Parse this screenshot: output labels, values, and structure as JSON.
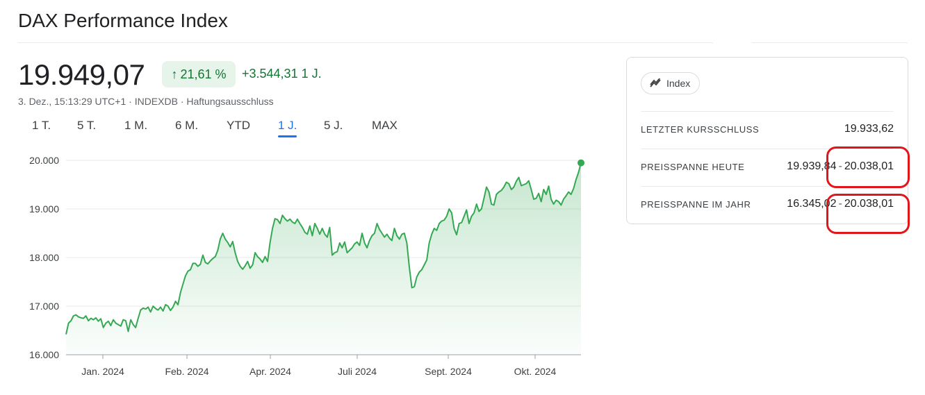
{
  "title": "DAX Performance Index",
  "quote": {
    "price": "19.949,07",
    "change_pct": "21,61 %",
    "change_abs": "+3.544,31 1 J.",
    "meta": "3. Dez., 15:13:29 UTC+1 · INDEXDB · Haftungsausschluss"
  },
  "ranges": [
    "1 T.",
    "5 T.",
    "1 M.",
    "6 M.",
    "YTD",
    "1 J.",
    "5 J.",
    "MAX"
  ],
  "active_range": "1 J.",
  "chart_data": {
    "type": "area",
    "y_ticks": [
      "20.000",
      "19.000",
      "18.000",
      "17.000",
      "16.000"
    ],
    "ylim": [
      16000,
      20000
    ],
    "x_ticks": [
      "Jan. 2024",
      "Feb. 2024",
      "Apr. 2024",
      "Juli 2024",
      "Sept. 2024",
      "Okt. 2024"
    ],
    "series": [
      {
        "values": [
          16420,
          16650,
          16700,
          16800,
          16820,
          16780,
          16760,
          16750,
          16800,
          16700,
          16750,
          16720,
          16760,
          16690,
          16740,
          16560,
          16650,
          16690,
          16600,
          16720,
          16650,
          16620,
          16590,
          16720,
          16700,
          16480,
          16720,
          16620,
          16560,
          16750,
          16920,
          16960,
          16940,
          16980,
          16880,
          17000,
          16950,
          16920,
          16980,
          16900,
          17030,
          17000,
          16910,
          16980,
          17100,
          17030,
          17280,
          17450,
          17620,
          17720,
          17750,
          17880,
          17880,
          17820,
          17860,
          18050,
          17900,
          17870,
          17930,
          17980,
          18020,
          18150,
          18380,
          18500,
          18380,
          18310,
          18220,
          18330,
          18100,
          17920,
          17820,
          17760,
          17830,
          17920,
          17780,
          17850,
          18100,
          18020,
          17970,
          17900,
          18020,
          17920,
          18300,
          18600,
          18800,
          18780,
          18700,
          18870,
          18800,
          18750,
          18790,
          18730,
          18700,
          18790,
          18700,
          18620,
          18520,
          18480,
          18650,
          18450,
          18700,
          18600,
          18480,
          18600,
          18480,
          18420,
          18620,
          18050,
          18100,
          18120,
          18300,
          18200,
          18320,
          18100,
          18150,
          18200,
          18280,
          18320,
          18250,
          18500,
          18300,
          18200,
          18350,
          18450,
          18500,
          18700,
          18580,
          18500,
          18420,
          18480,
          18400,
          18350,
          18600,
          18450,
          18380,
          18480,
          18500,
          18300,
          17800,
          17380,
          17400,
          17600,
          17700,
          17750,
          17850,
          17950,
          18300,
          18480,
          18600,
          18560,
          18700,
          18750,
          18770,
          18850,
          19000,
          18920,
          18600,
          18470,
          18700,
          18720,
          18850,
          18980,
          18700,
          18850,
          18920,
          19100,
          18950,
          19000,
          19220,
          19450,
          19350,
          19100,
          19080,
          19300,
          19350,
          19380,
          19450,
          19550,
          19520,
          19400,
          19450,
          19570,
          19650,
          19480,
          19500,
          19520,
          19580,
          19400,
          19200,
          19220,
          19320,
          19150,
          19400,
          19300,
          19470,
          19200,
          19100,
          19180,
          19150,
          19080,
          19200,
          19270,
          19350,
          19300,
          19420,
          19600,
          19750,
          19949
        ]
      }
    ]
  },
  "card": {
    "chip_label": "Index",
    "rows": [
      {
        "label": "LETZTER KURSSCHLUSS",
        "v1": "19.933,62"
      },
      {
        "label": "PREISSPANNE HEUTE",
        "v1": "19.939,84",
        "sep": "-",
        "v2": "20.038,01"
      },
      {
        "label": "PREISSPANNE IM JAHR",
        "v1": "16.345,02",
        "sep": "-",
        "v2": "20.038,01"
      }
    ]
  },
  "colors": {
    "line": "#34a853",
    "positive": "#137333",
    "active_tab": "#1a73e8",
    "annotation": "#e0161b"
  }
}
